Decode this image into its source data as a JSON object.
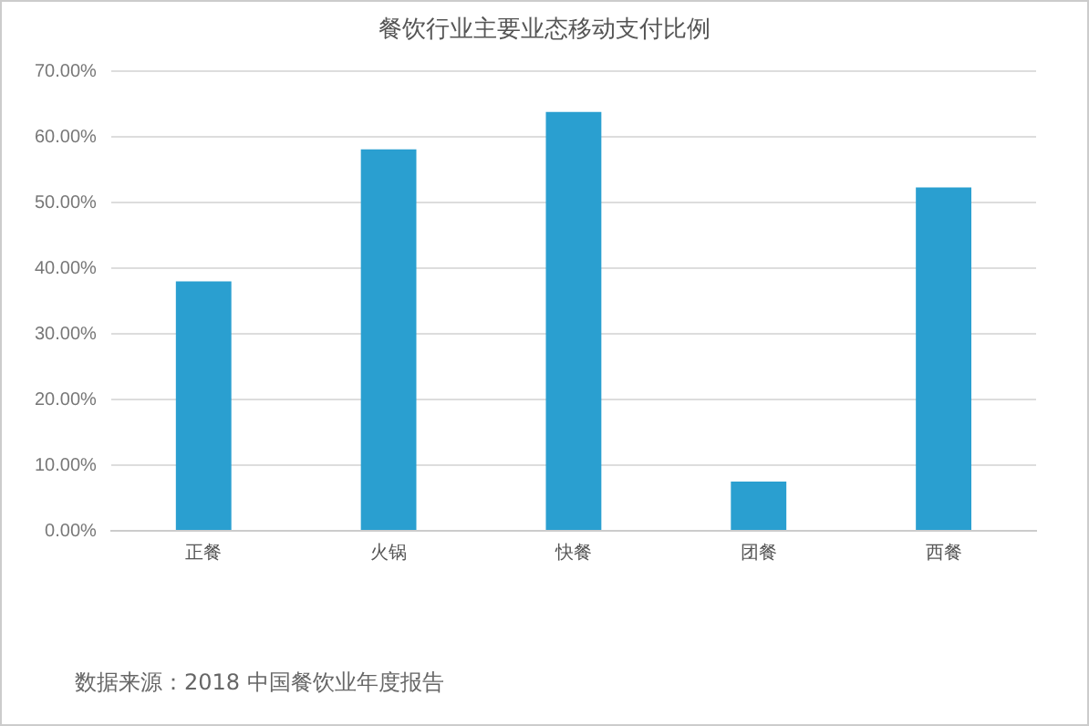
{
  "chart_data": {
    "type": "bar",
    "title": "餐饮行业主要业态移动支付比例",
    "categories": [
      "正餐",
      "火锅",
      "快餐",
      "团餐",
      "西餐"
    ],
    "values": [
      38,
      58.1,
      63.8,
      7.5,
      52.3
    ],
    "color": "#2a9fd0",
    "ylim": [
      0,
      70
    ],
    "yticks": [
      {
        "value": 0,
        "label": "0.00%"
      },
      {
        "value": 10,
        "label": "10.00%"
      },
      {
        "value": 20,
        "label": "20.00%"
      },
      {
        "value": 30,
        "label": "30.00%"
      },
      {
        "value": 40,
        "label": "40.00%"
      },
      {
        "value": 50,
        "label": "50.00%"
      },
      {
        "value": 60,
        "label": "60.00%"
      },
      {
        "value": 70,
        "label": "70.00%"
      }
    ],
    "grid": "y",
    "annotations": [
      "数据来源：2018 中国餐饮业年度报告"
    ]
  }
}
